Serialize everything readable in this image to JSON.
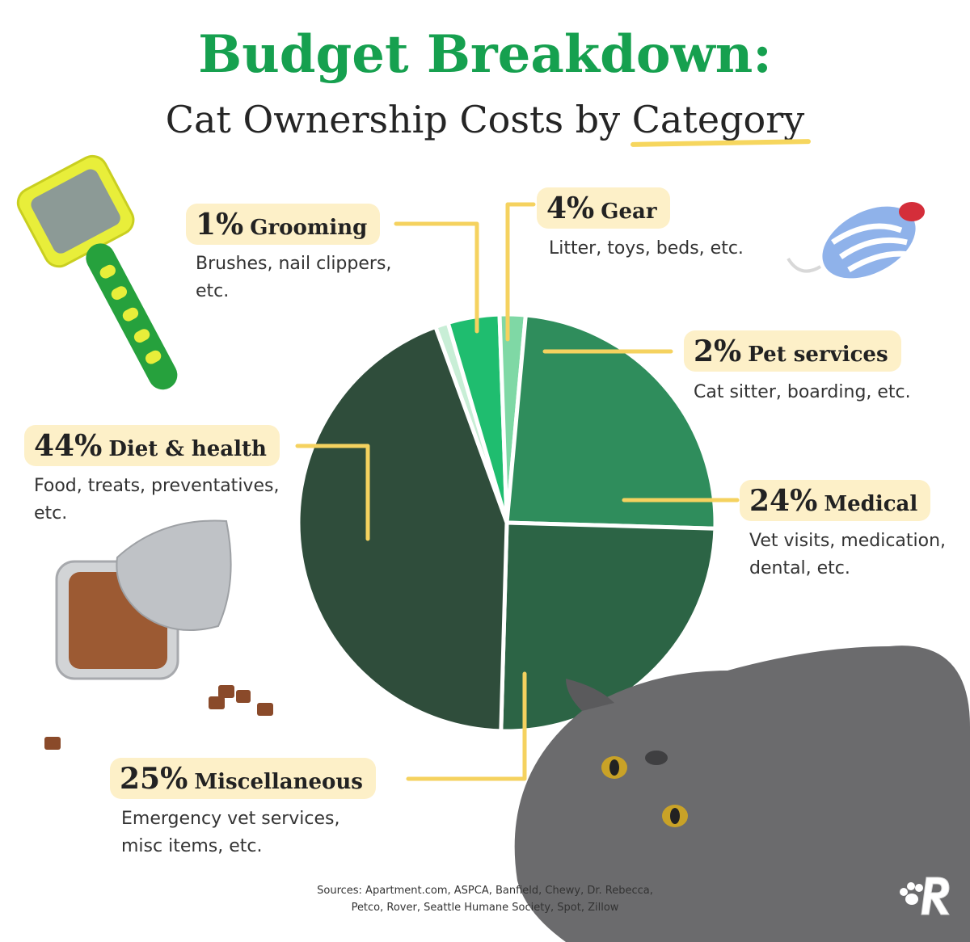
{
  "header": {
    "title": "Budget Breakdown:",
    "subtitle_main": "Cat Ownership Costs by ",
    "subtitle_accent": "Category"
  },
  "chart_data": {
    "type": "pie",
    "title": "Budget Breakdown: Cat Ownership Costs by Category",
    "start_angle_deg": -20,
    "slices": [
      {
        "label": "Grooming",
        "value": 1,
        "pct_label": "1%",
        "description": "Brushes, nail clippers, etc.",
        "color": "#c8eed6"
      },
      {
        "label": "Gear",
        "value": 4,
        "pct_label": "4%",
        "description": "Litter, toys, beds, etc.",
        "color": "#1fbd6f"
      },
      {
        "label": "Pet services",
        "value": 2,
        "pct_label": "2%",
        "description": "Cat sitter, boarding, etc.",
        "color": "#7fd8a5"
      },
      {
        "label": "Medical",
        "value": 24,
        "pct_label": "24%",
        "description": "Vet visits, medication, dental, etc.",
        "color": "#2f8d5c"
      },
      {
        "label": "Miscellaneous",
        "value": 25,
        "pct_label": "25%",
        "description": "Emergency vet services, misc items, etc.",
        "color": "#2c6445"
      },
      {
        "label": "Diet & health",
        "value": 44,
        "pct_label": "44%",
        "description": "Food, treats, preventatives, etc.",
        "color": "#2f4d3b"
      }
    ]
  },
  "labels": {
    "grooming": {
      "pct": "1%",
      "name": "Grooming",
      "desc_line1": "Brushes, nail clippers,",
      "desc_line2": "etc."
    },
    "gear": {
      "pct": "4%",
      "name": "Gear",
      "desc_line1": "Litter, toys, beds, etc."
    },
    "pet_services": {
      "pct": "2%",
      "name": "Pet services",
      "desc_line1": "Cat sitter, boarding, etc."
    },
    "medical": {
      "pct": "24%",
      "name": "Medical",
      "desc_line1": "Vet visits, medication,",
      "desc_line2": "dental, etc."
    },
    "miscellaneous": {
      "pct": "25%",
      "name": "Miscellaneous",
      "desc_line1": "Emergency vet services,",
      "desc_line2": "misc items, etc."
    },
    "diet_health": {
      "pct": "44%",
      "name": "Diet & health",
      "desc_line1": "Food, treats, preventatives,",
      "desc_line2": "etc."
    }
  },
  "footer": {
    "sources_line1": "Sources: Apartment.com, ASPCA, Banfield, Chewy, Dr. Rebecca,",
    "sources_line2": "Petco, Rover, Seattle Humane Society, Spot, Zillow"
  },
  "colors": {
    "title_green": "#16a04f",
    "tag_bg": "#fdf0c8",
    "leader_line": "#f5d25f"
  }
}
